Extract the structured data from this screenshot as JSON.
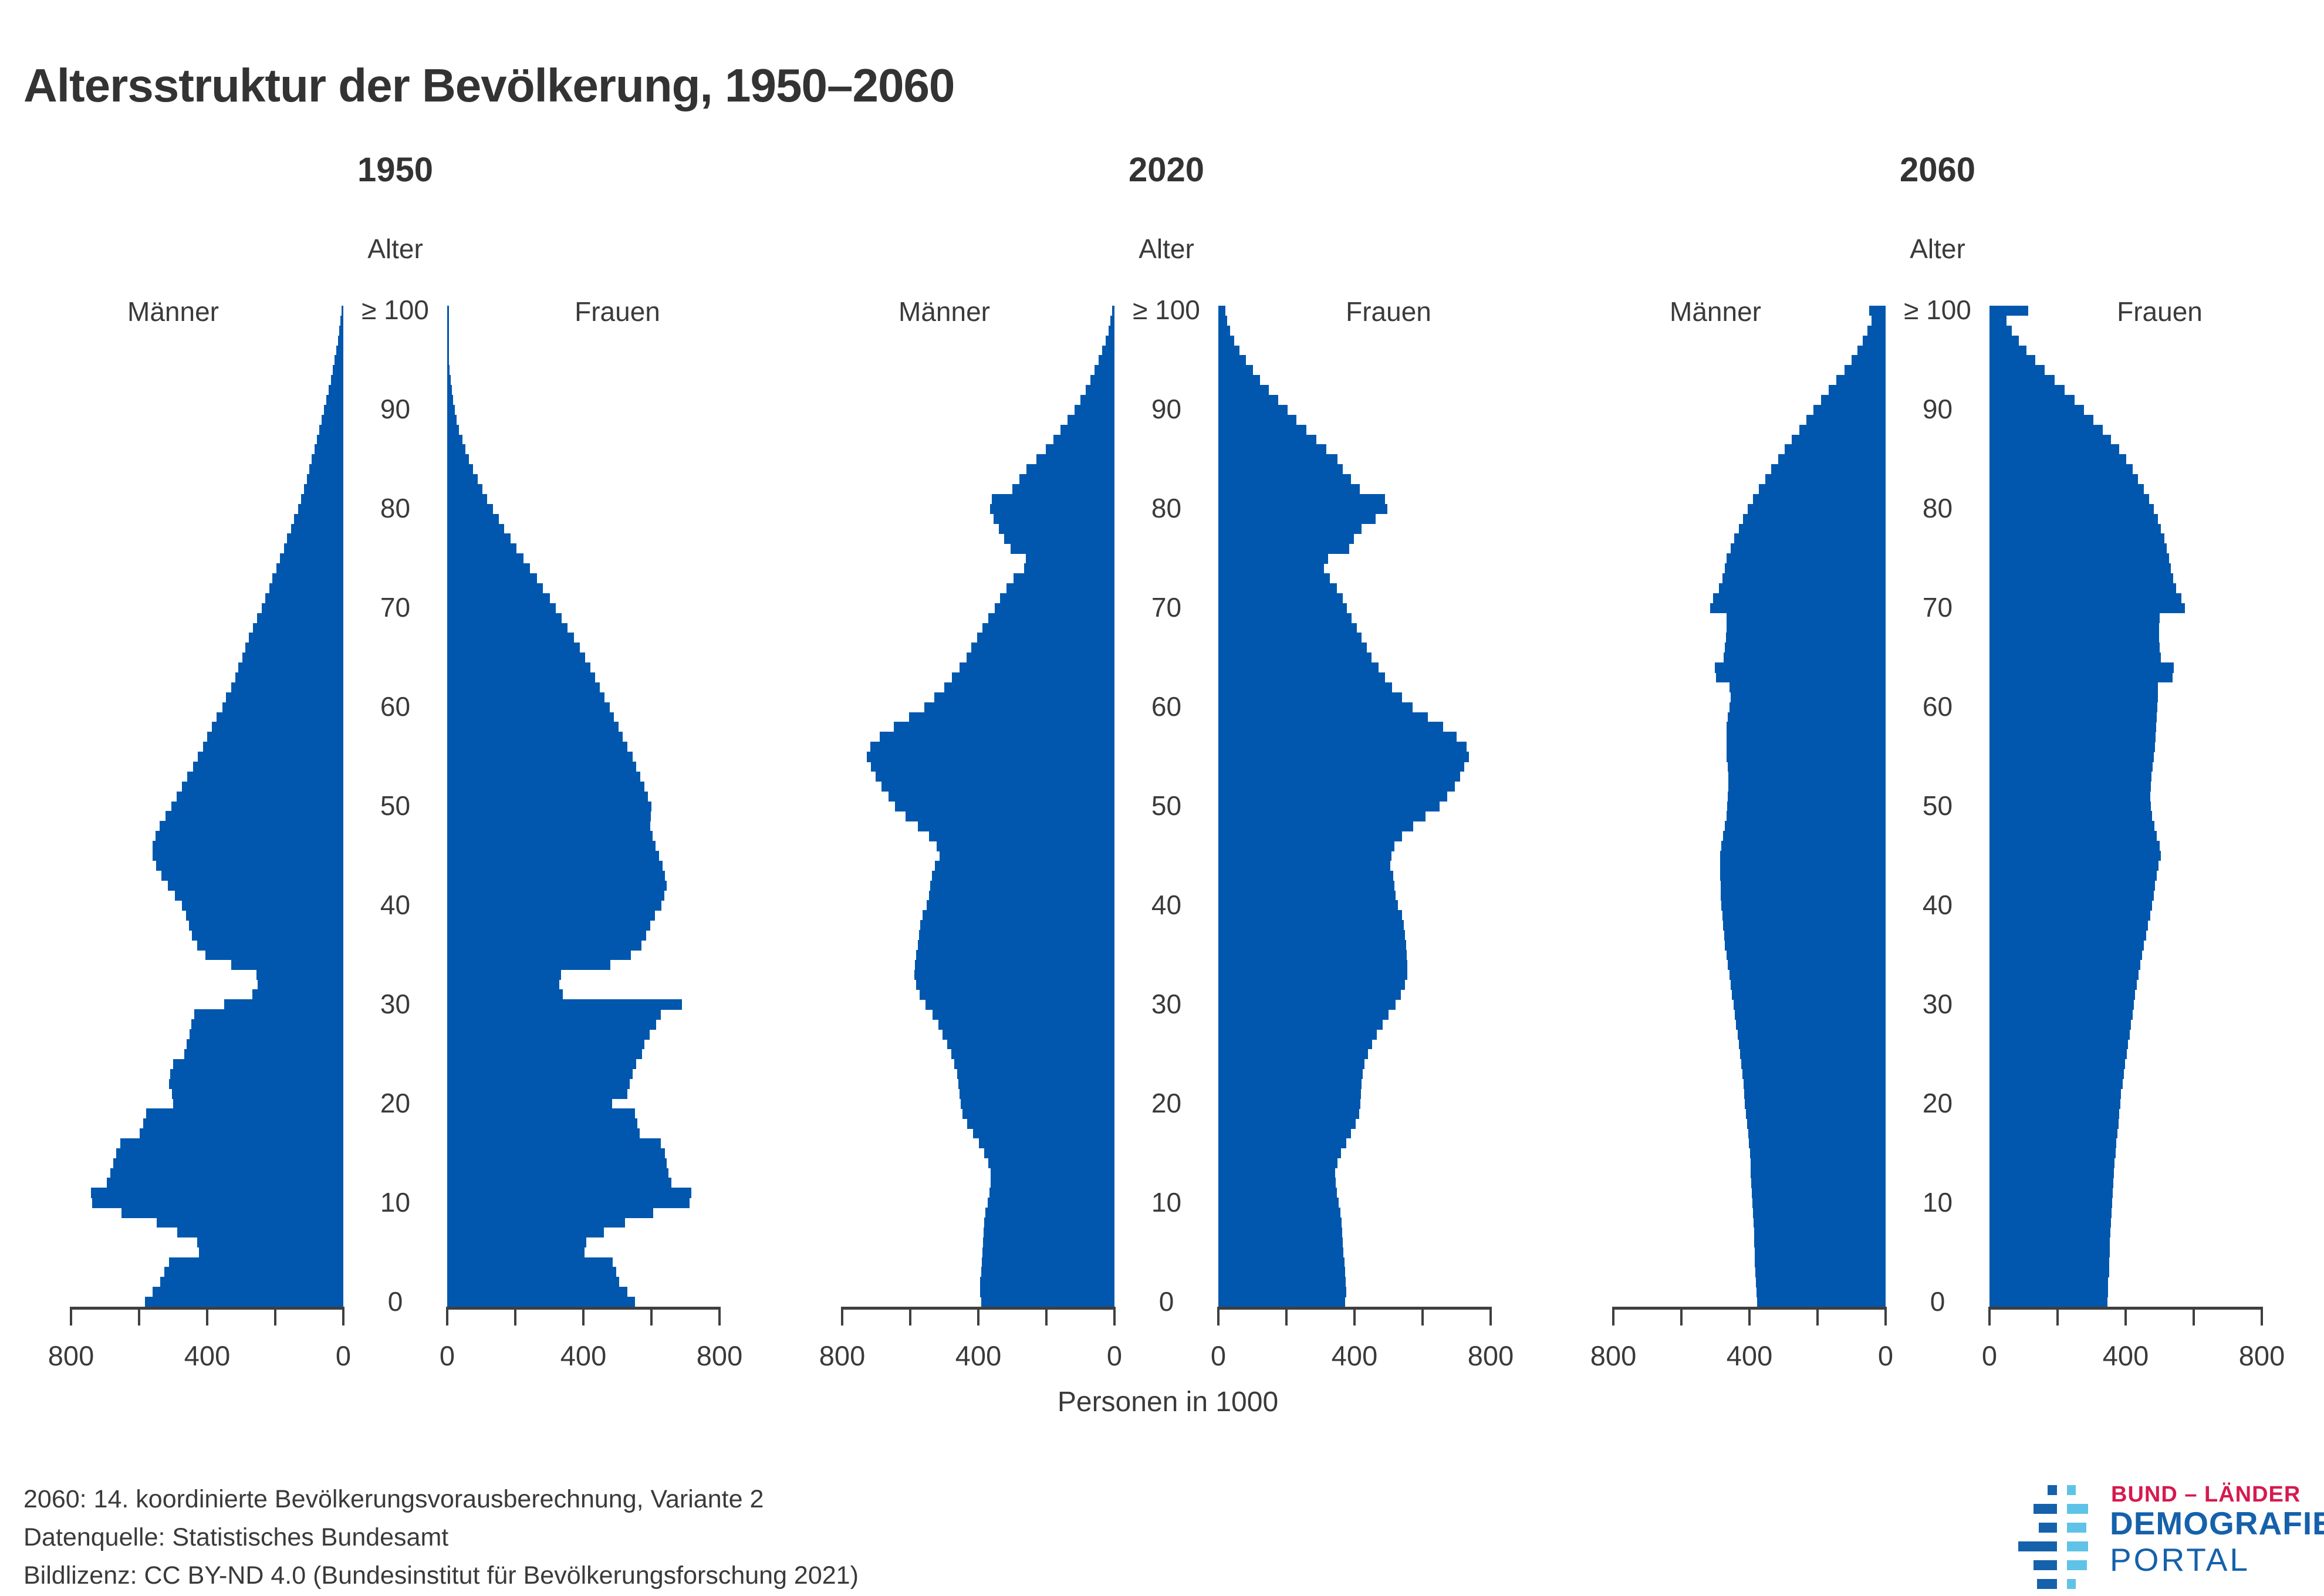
{
  "page": {
    "title": "Altersstruktur der Bevölkerung, 1950–2060"
  },
  "chart_data": {
    "type": "bar",
    "subtype": "back-to-back population pyramids, single-year ages, 0 to >=100",
    "title": "Altersstruktur der Bevölkerung, 1950–2060",
    "unit_label": "Personen in 1000",
    "x_axis": {
      "max": 800,
      "tick_interval": 200,
      "labeled_values": [
        800,
        400,
        0
      ],
      "left_half_tick_labels": [
        "800",
        "400",
        "0"
      ],
      "right_half_tick_labels": [
        "0",
        "400",
        "800"
      ]
    },
    "age_axis": {
      "title": "Alter",
      "decade_labels": [
        "0",
        "10",
        "20",
        "30",
        "40",
        "50",
        "60",
        "70",
        "80",
        "90"
      ],
      "top_label": "≥ 100"
    },
    "series_labels": {
      "left": "Männer",
      "right": "Frauen"
    },
    "pyramids": [
      {
        "year": "1950",
        "men": [
          582,
          560,
          538,
          526,
          512,
          424,
          430,
          488,
          548,
          652,
          738,
          742,
          694,
          684,
          676,
          668,
          656,
          598,
          588,
          580,
          500,
          504,
          512,
          508,
          500,
          468,
          460,
          452,
          446,
          438,
          350,
          268,
          252,
          255,
          330,
          405,
          430,
          444,
          454,
          462,
          475,
          495,
          515,
          535,
          550,
          560,
          560,
          552,
          540,
          522,
          505,
          490,
          474,
          458,
          442,
          428,
          412,
          400,
          386,
          372,
          356,
          344,
          330,
          318,
          308,
          296,
          288,
          277,
          266,
          253,
          240,
          229,
          218,
          208,
          197,
          187,
          175,
          165,
          154,
          144,
          133,
          124,
          115,
          107,
          100,
          93,
          85,
          78,
          71,
          64,
          57,
          50,
          43,
          37,
          31,
          26,
          21,
          16,
          12,
          8,
          2
        ],
        "women": [
          551,
          530,
          506,
          496,
          486,
          404,
          408,
          460,
          522,
          606,
          712,
          718,
          658,
          650,
          645,
          640,
          628,
          566,
          558,
          551,
          484,
          530,
          537,
          544,
          556,
          572,
          580,
          594,
          614,
          628,
          690,
          340,
          330,
          334,
          480,
          540,
          570,
          585,
          596,
          610,
          630,
          638,
          644,
          640,
          632,
          622,
          612,
          604,
          596,
          598,
          600,
          590,
          580,
          568,
          556,
          544,
          530,
          516,
          504,
          490,
          477,
          462,
          448,
          434,
          420,
          406,
          389,
          372,
          354,
          336,
          319,
          301,
          281,
          263,
          243,
          224,
          204,
          186,
          167,
          151,
          134,
          117,
          103,
          89,
          76,
          64,
          54,
          44,
          35,
          28,
          22,
          17,
          13,
          10,
          7,
          5,
          4,
          3,
          3,
          3,
          3
        ]
      },
      {
        "year": "2020",
        "men": [
          392,
          395,
          394,
          392,
          390,
          388,
          386,
          384,
          382,
          379,
          373,
          368,
          364,
          363,
          370,
          382,
          398,
          415,
          432,
          447,
          452,
          455,
          458,
          462,
          470,
          480,
          492,
          505,
          518,
          535,
          556,
          572,
          583,
          588,
          586,
          582,
          578,
          574,
          570,
          563,
          552,
          545,
          541,
          537,
          527,
          513,
          523,
          544,
          578,
          613,
          644,
          664,
          685,
          702,
          716,
          727,
          717,
          689,
          649,
          604,
          559,
          529,
          500,
          478,
          456,
          435,
          420,
          403,
          388,
          370,
          352,
          337,
          318,
          296,
          265,
          260,
          305,
          325,
          340,
          356,
          365,
          360,
          300,
          280,
          258,
          230,
          202,
          180,
          158,
          138,
          118,
          100,
          85,
          70,
          58,
          46,
          36,
          26,
          18,
          12,
          7
        ],
        "women": [
          372,
          375,
          374,
          372,
          370,
          368,
          366,
          364,
          362,
          359,
          353,
          348,
          344,
          343,
          350,
          361,
          375,
          390,
          403,
          414,
          417,
          419,
          421,
          424,
          430,
          440,
          452,
          466,
          482,
          500,
          520,
          536,
          548,
          555,
          556,
          554,
          551,
          548,
          545,
          539,
          528,
          521,
          517,
          513,
          505,
          508,
          518,
          540,
          572,
          608,
          650,
          672,
          694,
          710,
          722,
          736,
          730,
          700,
          660,
          615,
          570,
          540,
          510,
          490,
          470,
          450,
          436,
          420,
          407,
          392,
          378,
          365,
          348,
          327,
          310,
          322,
          385,
          399,
          420,
          462,
          497,
          490,
          415,
          390,
          365,
          350,
          318,
          288,
          258,
          229,
          203,
          176,
          149,
          123,
          101,
          81,
          62,
          46,
          34,
          26,
          21
        ]
      },
      {
        "year": "2060",
        "men": [
          378,
          380,
          381,
          383,
          384,
          385,
          386,
          387,
          388,
          390,
          391,
          393,
          394,
          396,
          397,
          399,
          401,
          404,
          407,
          410,
          413,
          415,
          418,
          421,
          424,
          427,
          431,
          435,
          439,
          443,
          447,
          451,
          455,
          459,
          464,
          468,
          472,
          475,
          478,
          480,
          482,
          484,
          485,
          486,
          487,
          486,
          483,
          478,
          472,
          468,
          465,
          464,
          462,
          462,
          464,
          467,
          468,
          468,
          467,
          464,
          459,
          455,
          458,
          499,
          501,
          476,
          472,
          469,
          467,
          468,
          515,
          507,
          490,
          480,
          473,
          467,
          455,
          444,
          431,
          419,
          405,
          389,
          372,
          354,
          336,
          316,
          297,
          276,
          254,
          233,
          212,
          190,
          167,
          144,
          120,
          100,
          83,
          68,
          54,
          41,
          48
        ],
        "women": [
          346,
          348,
          349,
          351,
          352,
          353,
          354,
          356,
          357,
          359,
          360,
          362,
          364,
          366,
          368,
          370,
          373,
          376,
          379,
          381,
          384,
          387,
          391,
          395,
          399,
          403,
          407,
          412,
          416,
          420,
          424,
          428,
          433,
          438,
          443,
          448,
          454,
          460,
          466,
          472,
          477,
          482,
          487,
          492,
          497,
          503,
          500,
          492,
          484,
          478,
          474,
          473,
          474,
          476,
          479,
          483,
          486,
          488,
          489,
          491,
          493,
          495,
          494,
          538,
          542,
          503,
          500,
          498,
          498,
          500,
          574,
          563,
          549,
          539,
          533,
          528,
          521,
          514,
          504,
          494,
          483,
          469,
          454,
          437,
          420,
          402,
          381,
          357,
          332,
          305,
          278,
          250,
          221,
          191,
          162,
          134,
          108,
          86,
          66,
          50,
          114
        ]
      }
    ]
  },
  "footnotes": {
    "line1": "2060: 14. koordinierte Bevölkerungsvorausberechnung, Variante 2",
    "line2": "Datenquelle: Statistisches Bundesamt",
    "line3": "Bildlizenz: CC BY-ND 4.0 (Bundesinstitut für Bevölkerungsforschung 2021)"
  },
  "logo": {
    "line1": "BUND – LÄNDER",
    "line2": "DEMOGRAFIE",
    "line3": "PORTAL"
  },
  "colors": {
    "bar_blue": "#0057ad",
    "axis_gray": "#3f3f3f",
    "text_gray": "#3a3a3a",
    "title_gray": "#333333",
    "logo_dark_blue": "#1561ab",
    "logo_light_blue": "#5fc3e7",
    "logo_red": "#d61a4e"
  }
}
